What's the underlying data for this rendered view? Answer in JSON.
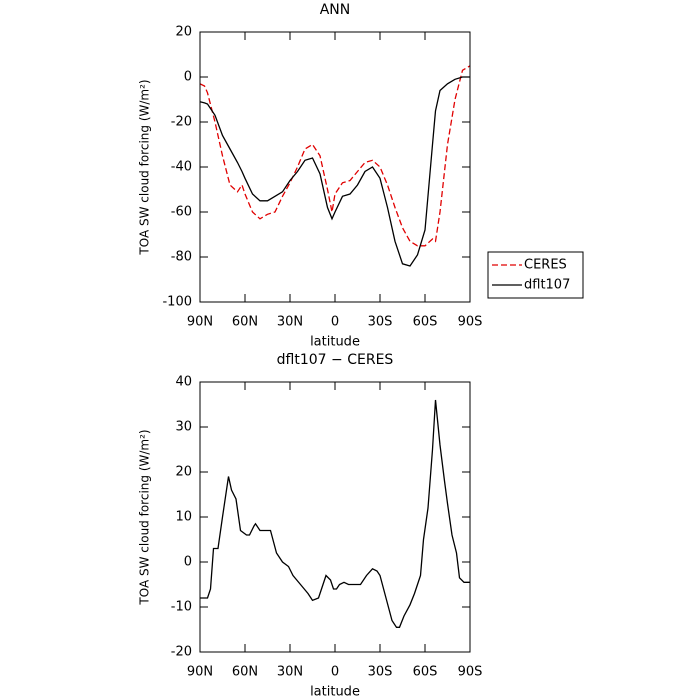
{
  "chart_data": [
    {
      "type": "line",
      "title": "ANN",
      "xlabel": "latitude",
      "ylabel": "TOA SW cloud forcing (W/m²)",
      "x": [
        90,
        87,
        85,
        80,
        75,
        70,
        65,
        62,
        60,
        55,
        50,
        45,
        40,
        35,
        30,
        25,
        20,
        15,
        10,
        5,
        2,
        0,
        -5,
        -10,
        -15,
        -20,
        -25,
        -30,
        -35,
        -40,
        -45,
        -50,
        -55,
        -60,
        -65,
        -67,
        -70,
        -75,
        -80,
        -85,
        -90
      ],
      "series": [
        {
          "name": "CERES",
          "color": "#e00000",
          "dash": true,
          "values": [
            -3,
            -4,
            -7,
            -20,
            -35,
            -48,
            -51,
            -48,
            -52,
            -60,
            -63,
            -61,
            -60,
            -53,
            -47,
            -40,
            -32,
            -30,
            -35,
            -50,
            -60,
            -52,
            -47,
            -46,
            -42,
            -38,
            -37,
            -40,
            -48,
            -58,
            -67,
            -73,
            -75,
            -75,
            -72,
            -73,
            -60,
            -30,
            -10,
            3,
            5
          ]
        },
        {
          "name": "dflt107",
          "color": "#000000",
          "dash": false,
          "values": [
            -11,
            -11.5,
            -12,
            -17,
            -26,
            -32,
            -38,
            -42,
            -45,
            -52,
            -55,
            -55,
            -53,
            -51,
            -46,
            -42,
            -37,
            -36,
            -43,
            -58,
            -63,
            -60,
            -53,
            -52,
            -48,
            -42,
            -40,
            -45,
            -58,
            -73,
            -83,
            -84,
            -79,
            -68,
            -30,
            -15,
            -6,
            -3,
            -1,
            0,
            0
          ]
        }
      ],
      "xlim": [
        90,
        -90
      ],
      "xticks": [
        {
          "value": 90,
          "label": "90N"
        },
        {
          "value": 60,
          "label": "60N"
        },
        {
          "value": 30,
          "label": "30N"
        },
        0,
        {
          "value": -30,
          "label": "30S"
        },
        {
          "value": -60,
          "label": "60S"
        },
        {
          "value": -90,
          "label": "90S"
        }
      ],
      "ylim": [
        -100,
        20
      ],
      "yticks": [
        -100,
        -80,
        -60,
        -40,
        -20,
        0,
        20
      ],
      "legend": "right"
    },
    {
      "type": "line",
      "title": "dflt107 − CERES",
      "xlabel": "latitude",
      "ylabel": "TOA SW cloud forcing (W/m²)",
      "x": [
        90,
        88,
        85,
        83,
        81,
        78,
        75,
        71,
        69,
        66,
        63,
        59,
        57,
        54,
        53,
        50,
        47,
        43,
        39,
        35,
        31,
        28,
        23,
        18,
        15,
        11,
        9,
        6,
        3,
        1,
        -1,
        -3,
        -6,
        -9,
        -17,
        -21,
        -25,
        -28,
        -30,
        -34,
        -38,
        -41,
        -43,
        -46,
        -50,
        -53,
        -57,
        -59,
        -62,
        -65,
        -67,
        -70,
        -73,
        -75,
        -78,
        -81,
        -83,
        -86,
        -90
      ],
      "series": [
        {
          "color": "#000000",
          "dash": false,
          "values": [
            -8,
            -8,
            -8,
            -6,
            3,
            3,
            10,
            19,
            16,
            14,
            7,
            6,
            6,
            8,
            8.5,
            7,
            7,
            7,
            2,
            0,
            -1,
            -3,
            -5,
            -7,
            -8.5,
            -8,
            -6,
            -3,
            -4,
            -6,
            -6,
            -5,
            -4.5,
            -5,
            -5,
            -3,
            -1.5,
            -2,
            -3,
            -8,
            -13,
            -14.5,
            -14.5,
            -12,
            -9.5,
            -7,
            -3,
            5,
            12,
            25,
            36,
            26,
            18,
            13,
            6,
            2,
            -3.5,
            -4.5,
            -4.5
          ]
        }
      ],
      "xlim": [
        90,
        -90
      ],
      "xticks": [
        {
          "value": 90,
          "label": "90N"
        },
        {
          "value": 60,
          "label": "60N"
        },
        {
          "value": 30,
          "label": "30N"
        },
        0,
        {
          "value": -30,
          "label": "30S"
        },
        {
          "value": -60,
          "label": "60S"
        },
        {
          "value": -90,
          "label": "90S"
        }
      ],
      "ylim": [
        -20,
        40
      ],
      "yticks": [
        -20,
        -10,
        0,
        10,
        20,
        30,
        40
      ]
    }
  ]
}
